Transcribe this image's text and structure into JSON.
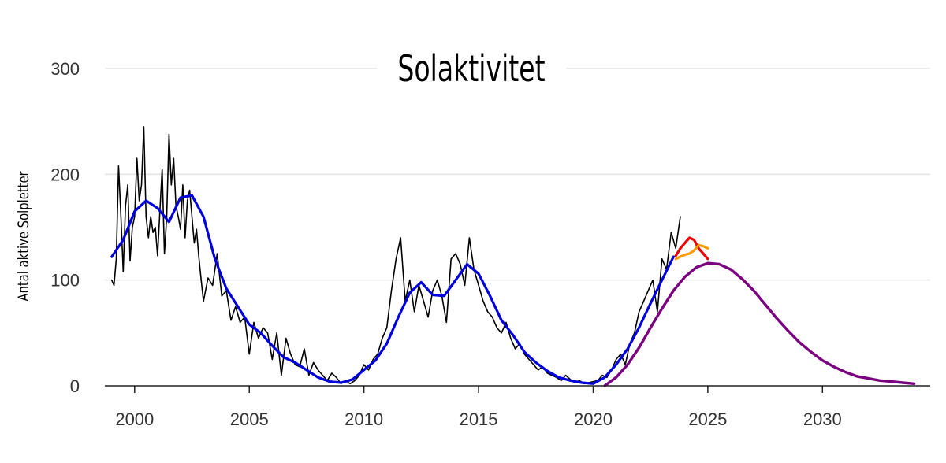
{
  "chart_data": {
    "type": "line",
    "title": "Solaktivitet",
    "ylabel": "Antal aktive Solpletter",
    "xlabel": "",
    "xlim": [
      1998.7,
      2034.7
    ],
    "ylim": [
      0,
      300
    ],
    "x_ticks": [
      2000,
      2005,
      2010,
      2015,
      2020,
      2025,
      2030
    ],
    "y_ticks": [
      0,
      100,
      200,
      300
    ],
    "grid": true,
    "colors": {
      "monthly": "#000000",
      "smoothed": "#0000dd",
      "prediction": "#7a0080",
      "forecast_red": "#ee0000",
      "forecast_orange": "#ff9900",
      "grid": "#e3e3e3",
      "axis": "#222222"
    },
    "series": [
      {
        "key": "monthly",
        "x": [
          1999.0,
          1999.1,
          1999.2,
          1999.3,
          1999.4,
          1999.5,
          1999.6,
          1999.7,
          1999.8,
          1999.9,
          2000.0,
          2000.1,
          2000.2,
          2000.3,
          2000.4,
          2000.5,
          2000.6,
          2000.7,
          2000.8,
          2000.9,
          2001.0,
          2001.1,
          2001.2,
          2001.3,
          2001.4,
          2001.5,
          2001.6,
          2001.7,
          2001.8,
          2001.9,
          2002.0,
          2002.1,
          2002.2,
          2002.3,
          2002.4,
          2002.5,
          2002.6,
          2002.7,
          2002.8,
          2002.9,
          2003.0,
          2003.2,
          2003.4,
          2003.6,
          2003.8,
          2004.0,
          2004.2,
          2004.4,
          2004.6,
          2004.8,
          2005.0,
          2005.2,
          2005.4,
          2005.6,
          2005.8,
          2006.0,
          2006.2,
          2006.4,
          2006.6,
          2006.8,
          2007.0,
          2007.2,
          2007.4,
          2007.6,
          2007.8,
          2008.0,
          2008.2,
          2008.4,
          2008.6,
          2008.8,
          2009.0,
          2009.2,
          2009.4,
          2009.6,
          2009.8,
          2010.0,
          2010.2,
          2010.4,
          2010.6,
          2010.8,
          2011.0,
          2011.2,
          2011.4,
          2011.6,
          2011.8,
          2012.0,
          2012.2,
          2012.4,
          2012.6,
          2012.8,
          2013.0,
          2013.2,
          2013.4,
          2013.6,
          2013.8,
          2014.0,
          2014.2,
          2014.4,
          2014.6,
          2014.8,
          2015.0,
          2015.2,
          2015.4,
          2015.6,
          2015.8,
          2016.0,
          2016.2,
          2016.4,
          2016.6,
          2016.8,
          2017.0,
          2017.2,
          2017.4,
          2017.6,
          2017.8,
          2018.0,
          2018.2,
          2018.4,
          2018.6,
          2018.8,
          2019.0,
          2019.2,
          2019.4,
          2019.6,
          2019.8,
          2020.0,
          2020.2,
          2020.4,
          2020.6,
          2020.8,
          2021.0,
          2021.2,
          2021.4,
          2021.6,
          2021.8,
          2022.0,
          2022.2,
          2022.4,
          2022.6,
          2022.8,
          2023.0,
          2023.2,
          2023.4,
          2023.6,
          2023.8
        ],
        "y": [
          100,
          95,
          120,
          208,
          160,
          108,
          170,
          190,
          118,
          150,
          160,
          215,
          175,
          190,
          245,
          160,
          140,
          160,
          145,
          150,
          123,
          165,
          205,
          125,
          160,
          238,
          190,
          215,
          170,
          160,
          148,
          190,
          140,
          175,
          185,
          160,
          135,
          148,
          122,
          100,
          80,
          102,
          95,
          125,
          85,
          90,
          62,
          75,
          60,
          65,
          30,
          60,
          45,
          55,
          50,
          25,
          50,
          10,
          45,
          30,
          20,
          18,
          35,
          10,
          22,
          15,
          10,
          5,
          12,
          8,
          2,
          5,
          2,
          5,
          10,
          20,
          15,
          25,
          30,
          45,
          55,
          90,
          120,
          140,
          80,
          100,
          70,
          95,
          80,
          65,
          90,
          100,
          85,
          60,
          120,
          125,
          115,
          95,
          140,
          110,
          95,
          80,
          70,
          65,
          55,
          50,
          60,
          45,
          35,
          40,
          30,
          25,
          20,
          15,
          18,
          12,
          10,
          8,
          5,
          10,
          6,
          3,
          5,
          2,
          3,
          4,
          5,
          10,
          8,
          15,
          25,
          30,
          20,
          40,
          50,
          70,
          80,
          90,
          100,
          70,
          120,
          110,
          145,
          130,
          160
        ]
      },
      {
        "key": "smoothed",
        "x": [
          1999.0,
          1999.5,
          2000.0,
          2000.5,
          2001.0,
          2001.5,
          2002.0,
          2002.5,
          2003.0,
          2003.5,
          2004.0,
          2004.5,
          2005.0,
          2005.5,
          2006.0,
          2006.5,
          2007.0,
          2007.5,
          2008.0,
          2008.5,
          2009.0,
          2009.5,
          2010.0,
          2010.5,
          2011.0,
          2011.5,
          2012.0,
          2012.5,
          2013.0,
          2013.5,
          2014.0,
          2014.5,
          2015.0,
          2015.5,
          2016.0,
          2016.5,
          2017.0,
          2017.5,
          2018.0,
          2018.5,
          2019.0,
          2019.5,
          2020.0,
          2020.5,
          2021.0,
          2021.5,
          2022.0,
          2022.5,
          2023.0,
          2023.5
        ],
        "y": [
          122,
          138,
          165,
          175,
          168,
          155,
          178,
          180,
          160,
          120,
          92,
          75,
          58,
          50,
          38,
          27,
          22,
          15,
          8,
          4,
          3,
          6,
          15,
          24,
          40,
          65,
          88,
          98,
          86,
          85,
          100,
          115,
          106,
          85,
          62,
          48,
          32,
          22,
          14,
          8,
          5,
          3,
          2,
          8,
          20,
          35,
          55,
          78,
          100,
          122
        ]
      },
      {
        "key": "prediction",
        "x": [
          2020.5,
          2021.0,
          2021.5,
          2022.0,
          2022.5,
          2023.0,
          2023.5,
          2024.0,
          2024.5,
          2025.0,
          2025.5,
          2026.0,
          2026.5,
          2027.0,
          2027.5,
          2028.0,
          2028.5,
          2029.0,
          2029.5,
          2030.0,
          2030.5,
          2031.0,
          2031.5,
          2032.0,
          2032.5,
          2033.0,
          2033.5,
          2034.0
        ],
        "y": [
          0,
          8,
          20,
          36,
          55,
          73,
          90,
          103,
          112,
          116,
          115,
          110,
          101,
          90,
          77,
          64,
          52,
          41,
          32,
          24,
          18,
          13,
          9,
          7,
          5,
          4,
          3,
          2
        ]
      },
      {
        "key": "forecast_red",
        "x": [
          2023.6,
          2023.8,
          2024.0,
          2024.2,
          2024.4,
          2024.6,
          2024.8,
          2025.0
        ],
        "y": [
          123,
          130,
          135,
          140,
          138,
          130,
          125,
          120
        ]
      },
      {
        "key": "forecast_orange",
        "x": [
          2023.6,
          2023.8,
          2024.0,
          2024.2,
          2024.4,
          2024.6,
          2024.8,
          2025.0
        ],
        "y": [
          120,
          122,
          124,
          125,
          128,
          133,
          132,
          130
        ]
      }
    ]
  }
}
